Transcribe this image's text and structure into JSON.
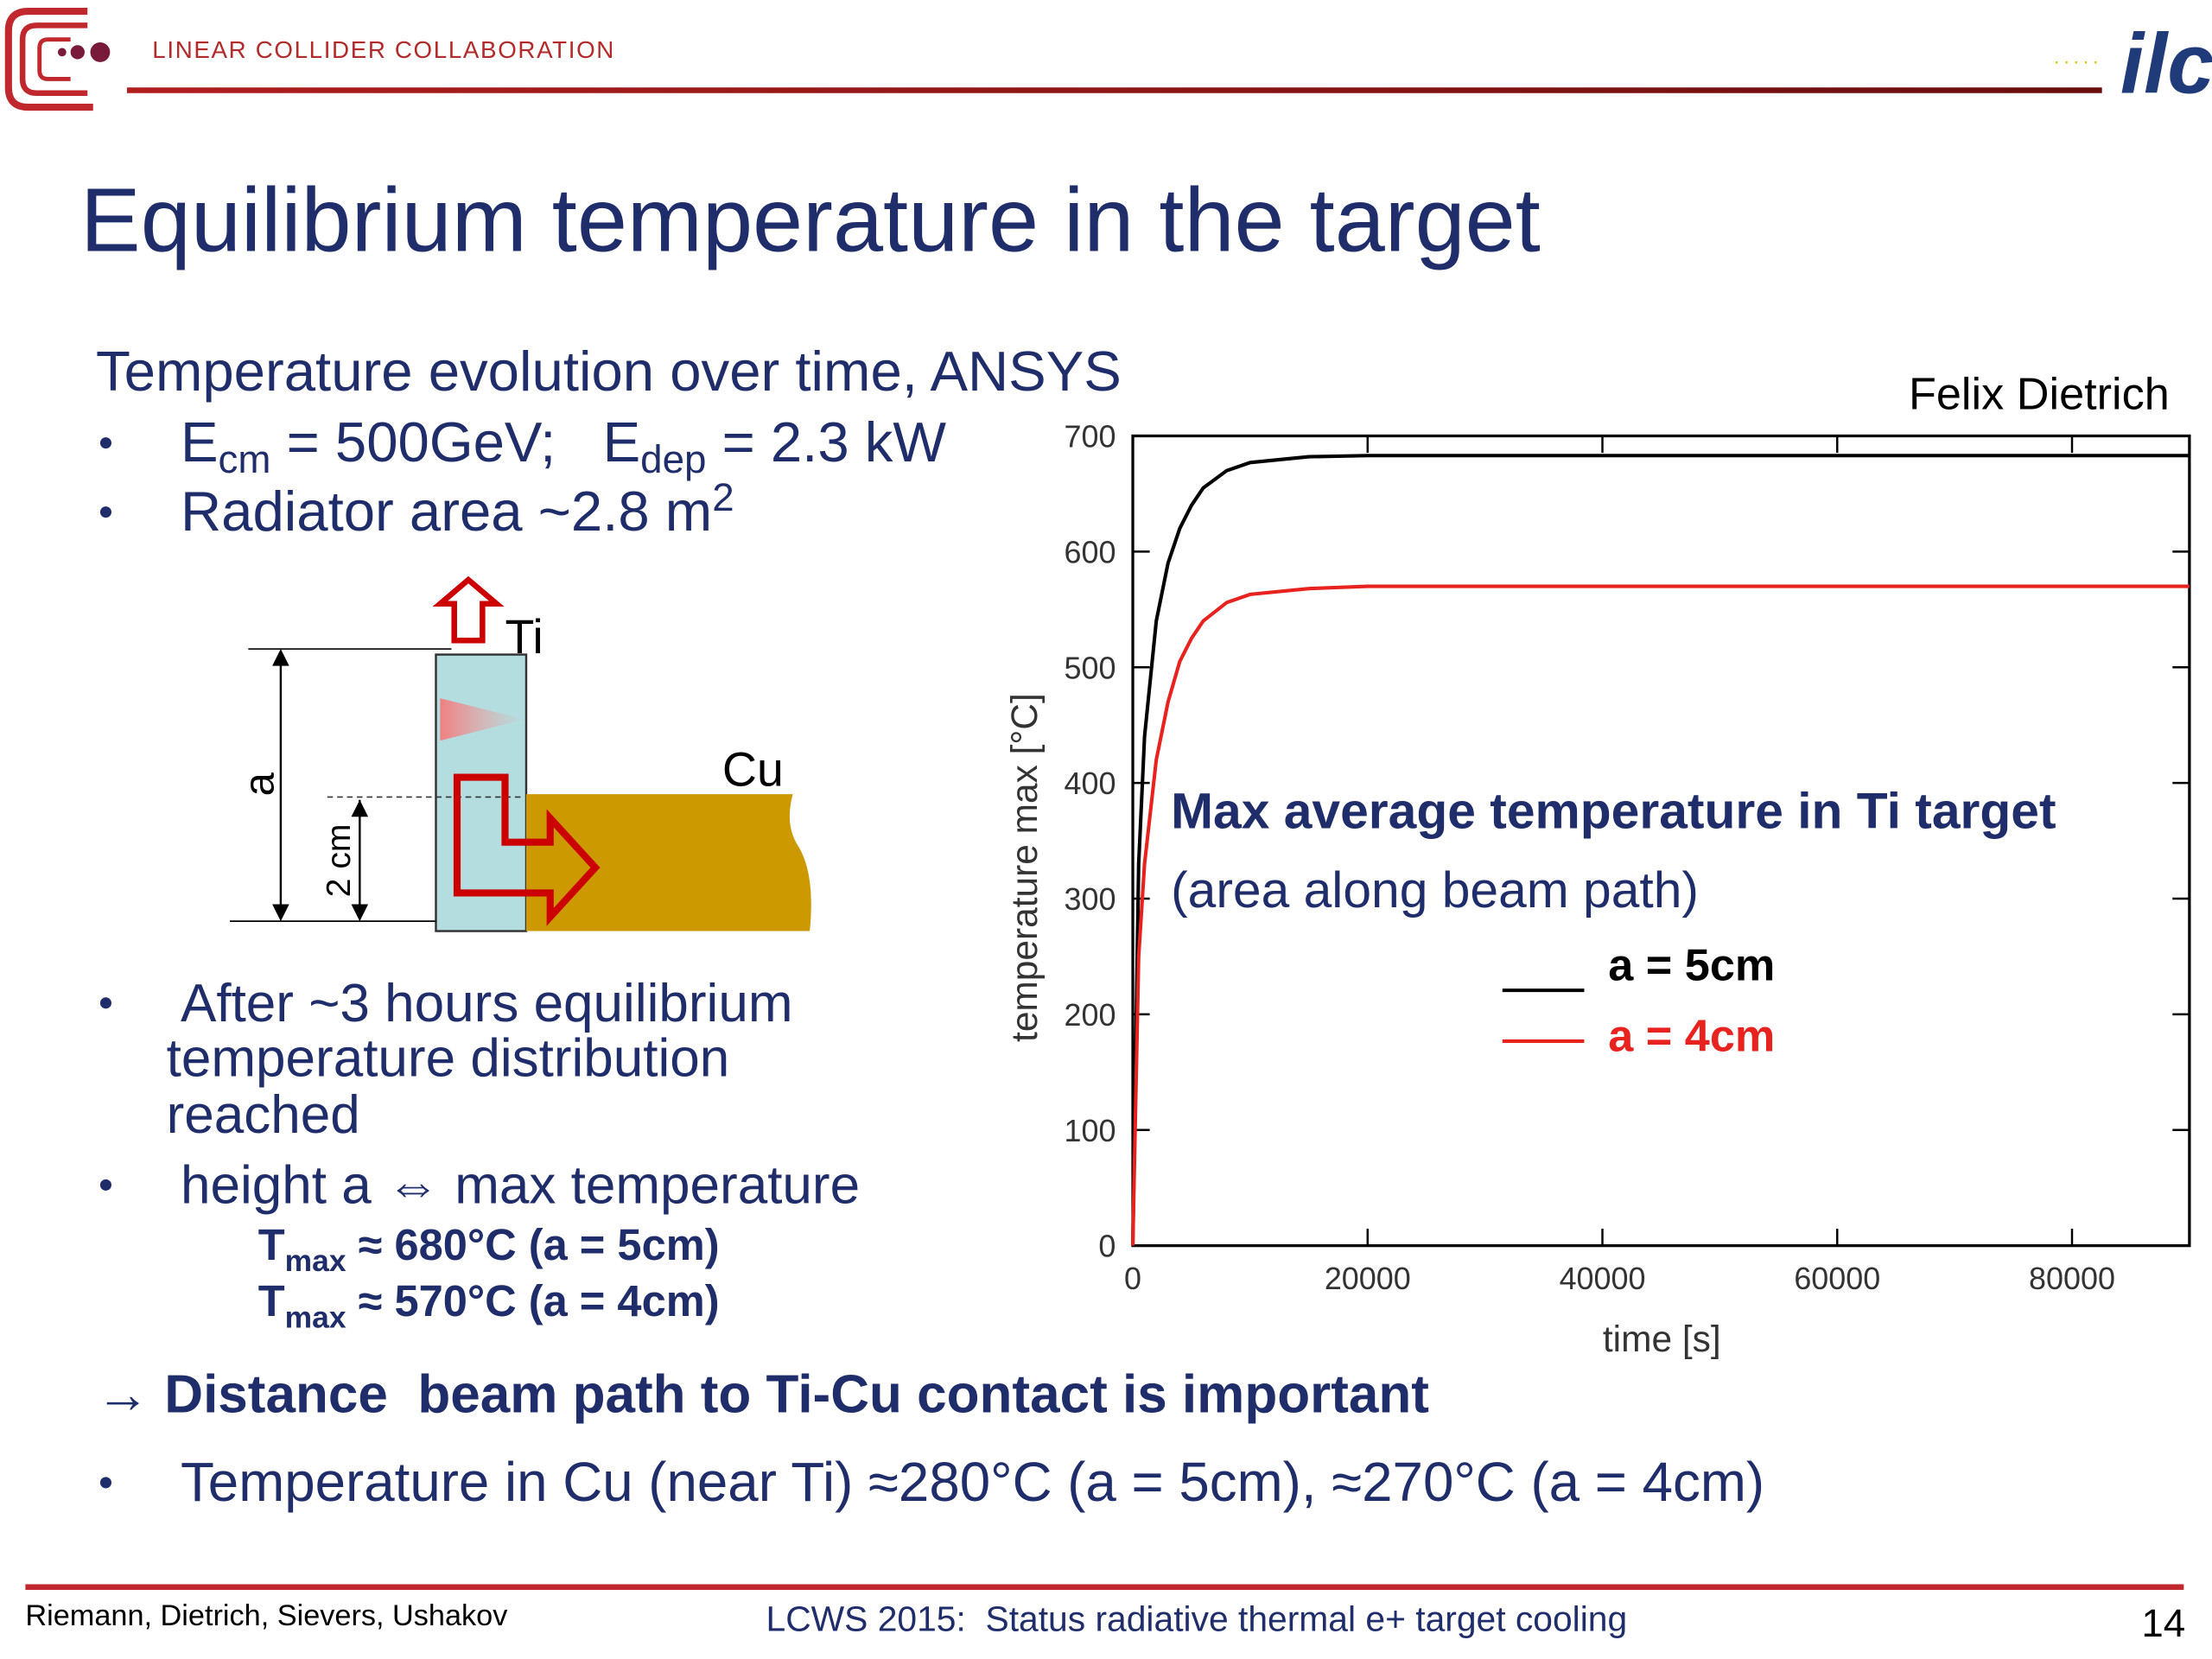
{
  "header": {
    "organization": "LINEAR COLLIDER COLLABORATION",
    "logo_text": "ilc"
  },
  "title": "Equilibrium temperature in the target",
  "subtitle": "Temperature evolution over time, ANSYS",
  "bullets_top": [
    [
      "E",
      "cm",
      " = 500GeV;   E",
      "dep",
      " = 2.3 kW"
    ],
    [
      "Radiator area ~2.8 m",
      "2"
    ]
  ],
  "diagram": {
    "ti_label": "Ti",
    "cu_label": "Cu",
    "height_label": "a",
    "offset_label": "2 cm"
  },
  "bullet_equilibrium": [
    "After ~3 hours equilibrium",
    "temperature distribution",
    "reached"
  ],
  "bullet_height": "height a ⇔ max temperature",
  "tmax_lines": [
    [
      "T",
      "max",
      " ≈ 680°C (a = 5cm)"
    ],
    [
      "T",
      "max",
      " ≈ 570°C (a = 4cm)"
    ]
  ],
  "conclusion": "→ Distance  beam path to Ti-Cu contact is important",
  "bullet_cu": "Temperature in Cu (near Ti) ≈280°C (a = 5cm), ≈270°C (a = 4cm)",
  "footer": {
    "authors": "Riemann, Dietrich, Sievers, Ushakov",
    "conference": "LCWS 2015:  Status radiative thermal e+ target cooling",
    "page": "14"
  },
  "chart_data": {
    "type": "line",
    "credit": "Felix Dietrich",
    "x_label": "time [s]",
    "y_label": "temperature max [°C]",
    "annotations": [
      "Max average temperature in Ti target",
      "(area along beam path)"
    ],
    "x": [
      0,
      500,
      1000,
      2000,
      3000,
      4000,
      5000,
      6000,
      8000,
      10000,
      15000,
      20000,
      40000,
      60000,
      90000
    ],
    "series": [
      {
        "name": "a = 5cm",
        "color": "#000000",
        "values": [
          0,
          330,
          440,
          540,
          590,
          620,
          640,
          655,
          670,
          677,
          682,
          683,
          683,
          683,
          683
        ]
      },
      {
        "name": "a = 4cm",
        "color": "#e8231f",
        "values": [
          0,
          250,
          330,
          420,
          470,
          505,
          525,
          540,
          556,
          563,
          568,
          570,
          570,
          570,
          570
        ]
      }
    ],
    "xlim": [
      0,
      90000
    ],
    "ylim": [
      0,
      700
    ],
    "xticks": [
      0,
      20000,
      40000,
      60000,
      80000
    ],
    "yticks": [
      0,
      100,
      200,
      300,
      400,
      500,
      600,
      700
    ]
  }
}
